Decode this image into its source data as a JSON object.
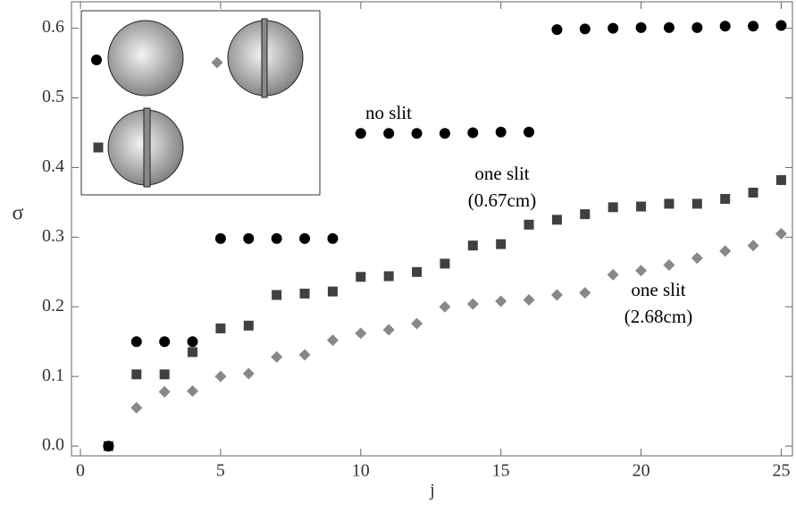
{
  "chart_data": {
    "type": "scatter",
    "xlabel": "j",
    "ylabel": "σ",
    "xlim": [
      -0.32,
      25.4
    ],
    "ylim": [
      -0.014,
      0.638
    ],
    "xticks": [
      0,
      5,
      10,
      15,
      20,
      25
    ],
    "yticks": [
      {
        "value": 0,
        "label": "0.0"
      },
      0.1,
      0.2,
      0.3,
      0.4,
      0.5,
      0.6
    ],
    "x": [
      1,
      2,
      3,
      4,
      5,
      6,
      7,
      8,
      9,
      10,
      11,
      12,
      13,
      14,
      15,
      16,
      17,
      18,
      19,
      20,
      21,
      22,
      23,
      24,
      25
    ],
    "series": [
      {
        "color": "#505050",
        "marker": "diamond",
        "values": [
          0,
          0.055,
          0.078,
          0.079,
          0.1,
          0.104,
          0.128,
          0.131,
          0.152,
          0.162,
          0.167,
          0.176,
          0.2,
          0.204,
          0.208,
          0.21,
          0.217,
          0.22,
          0.246,
          0.252,
          0.26,
          0.27,
          0.28,
          0.288,
          0.305
        ]
      },
      {
        "color": "#404040",
        "marker": "square",
        "values": [
          0,
          0.103,
          0.103,
          0.135,
          0.169,
          0.173,
          0.217,
          0.219,
          0.222,
          0.243,
          0.244,
          0.25,
          0.262,
          0.288,
          0.29,
          0.318,
          0.325,
          0.333,
          0.343,
          0.344,
          0.348,
          0.348,
          0.355,
          0.364,
          0.382
        ]
      },
      {
        "color": "#000000",
        "marker": "circle",
        "values": [
          0,
          0.15,
          0.15,
          0.15,
          0.298,
          0.298,
          0.298,
          0.298,
          0.298,
          0.449,
          0.449,
          0.449,
          0.449,
          0.45,
          0.451,
          0.451,
          0.598,
          0.599,
          0.6,
          0.601,
          0.601,
          0.601,
          0.603,
          0.603,
          0.604
        ]
      }
    ],
    "annotations": [
      [
        "no slit"
      ],
      [
        "one slit",
        "(0.67cm)"
      ],
      [
        "one slit",
        "(2.68cm)"
      ]
    ]
  }
}
